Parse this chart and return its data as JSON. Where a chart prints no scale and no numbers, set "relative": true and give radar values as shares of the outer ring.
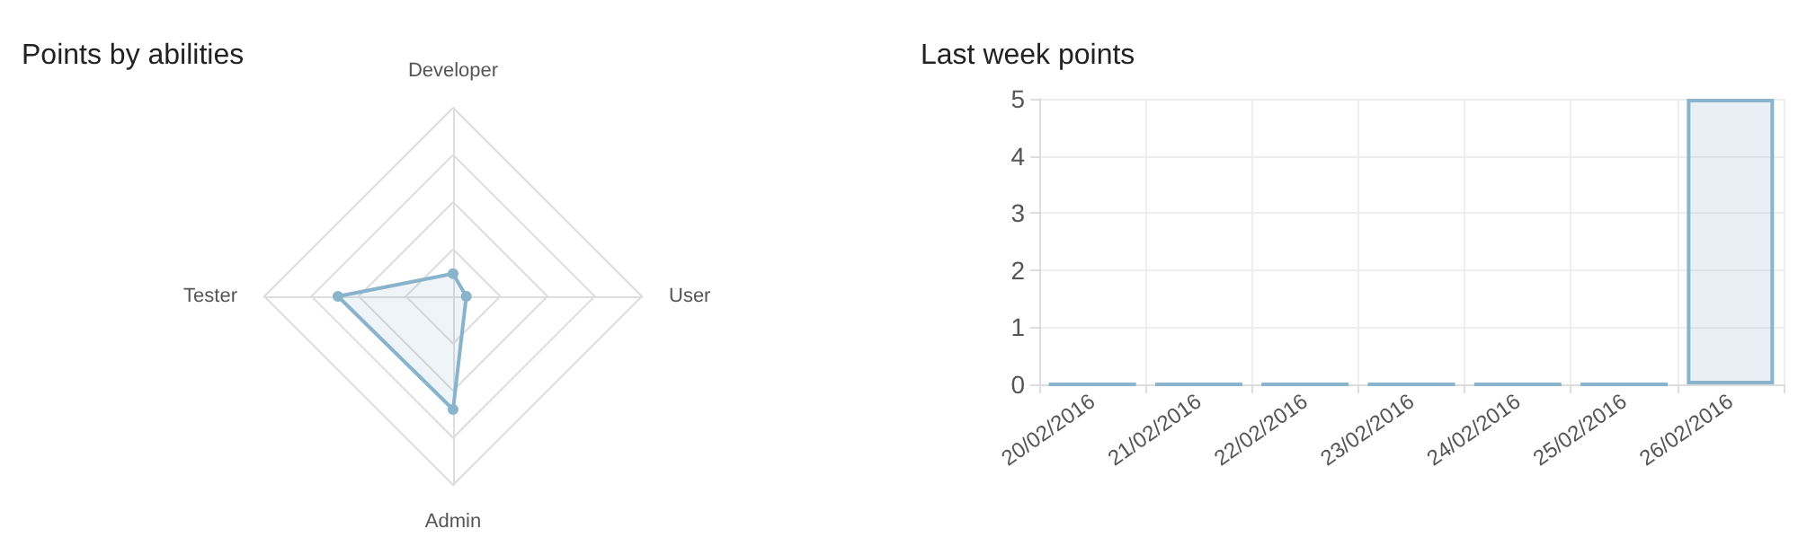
{
  "chart_data": [
    {
      "type": "radar",
      "title": "Points by abilities",
      "categories": [
        "Developer",
        "User",
        "Admin",
        "Tester"
      ],
      "relative": true,
      "grid": true,
      "marker": "circle",
      "series": [
        {
          "color": "#8ab4cc",
          "values": [
            0.12,
            0.07,
            0.6,
            0.61
          ]
        }
      ]
    },
    {
      "type": "bar",
      "title": "Last week points",
      "categories": [
        "20/02/2016",
        "21/02/2016",
        "22/02/2016",
        "23/02/2016",
        "24/02/2016",
        "25/02/2016",
        "26/02/2016"
      ],
      "ylim": [
        0,
        5
      ],
      "yticks": [
        0,
        1,
        2,
        3,
        4,
        5
      ],
      "grid": true,
      "series": [
        {
          "color": "#8ab4cc",
          "values": [
            0,
            0,
            0,
            0,
            0,
            0,
            5
          ]
        }
      ]
    }
  ]
}
